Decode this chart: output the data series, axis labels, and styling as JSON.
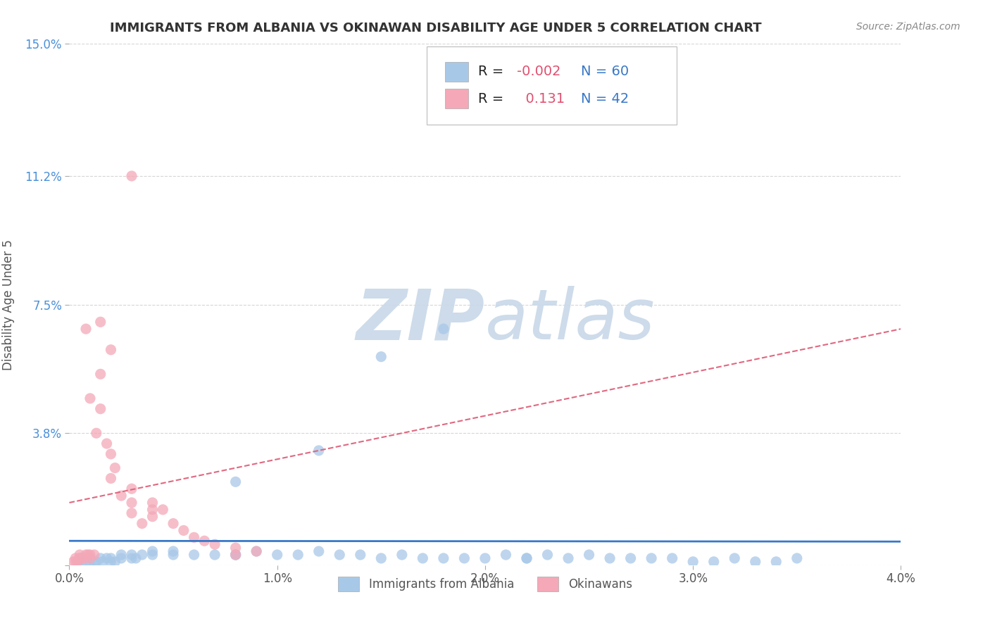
{
  "title": "IMMIGRANTS FROM ALBANIA VS OKINAWAN DISABILITY AGE UNDER 5 CORRELATION CHART",
  "source": "Source: ZipAtlas.com",
  "ylabel": "Disability Age Under 5",
  "legend_label_1": "Immigrants from Albania",
  "legend_label_2": "Okinawans",
  "R1": -0.002,
  "N1": 60,
  "R2": 0.131,
  "N2": 42,
  "color1": "#a8c8e8",
  "color2": "#f4a8b8",
  "trendline1_color": "#3878c8",
  "trendline2_color": "#e06880",
  "xlim": [
    0.0,
    0.04
  ],
  "ylim": [
    0.0,
    0.15
  ],
  "xticks": [
    0.0,
    0.01,
    0.02,
    0.03,
    0.04
  ],
  "xticklabels": [
    "0.0%",
    "1.0%",
    "2.0%",
    "3.0%",
    "4.0%"
  ],
  "yticks": [
    0.0,
    0.038,
    0.075,
    0.112,
    0.15
  ],
  "yticklabels": [
    "",
    "3.8%",
    "7.5%",
    "11.2%",
    "15.0%"
  ],
  "background_color": "#ffffff",
  "grid_color": "#cccccc",
  "watermark_zip": "ZIP",
  "watermark_atlas": "atlas",
  "watermark_color_zip": "#c8d8e8",
  "watermark_color_atlas": "#c8d8e8",
  "scatter1_x": [
    0.0004,
    0.0005,
    0.0006,
    0.0008,
    0.001,
    0.001,
    0.0012,
    0.0013,
    0.0015,
    0.0016,
    0.0018,
    0.002,
    0.002,
    0.0022,
    0.0025,
    0.0025,
    0.003,
    0.003,
    0.0032,
    0.0035,
    0.004,
    0.004,
    0.005,
    0.005,
    0.006,
    0.007,
    0.008,
    0.008,
    0.009,
    0.01,
    0.011,
    0.012,
    0.013,
    0.014,
    0.015,
    0.016,
    0.017,
    0.018,
    0.019,
    0.02,
    0.021,
    0.022,
    0.023,
    0.024,
    0.025,
    0.026,
    0.027,
    0.028,
    0.029,
    0.03,
    0.031,
    0.032,
    0.033,
    0.034,
    0.035,
    0.022,
    0.018,
    0.015,
    0.012,
    0.008
  ],
  "scatter1_y": [
    0.001,
    0.002,
    0.001,
    0.001,
    0.001,
    0.002,
    0.001,
    0.001,
    0.002,
    0.001,
    0.002,
    0.001,
    0.002,
    0.001,
    0.002,
    0.003,
    0.002,
    0.003,
    0.002,
    0.003,
    0.003,
    0.004,
    0.003,
    0.004,
    0.003,
    0.003,
    0.003,
    0.003,
    0.004,
    0.003,
    0.003,
    0.004,
    0.003,
    0.003,
    0.002,
    0.003,
    0.002,
    0.002,
    0.002,
    0.002,
    0.003,
    0.002,
    0.003,
    0.002,
    0.003,
    0.002,
    0.002,
    0.002,
    0.002,
    0.001,
    0.001,
    0.002,
    0.001,
    0.001,
    0.002,
    0.002,
    0.068,
    0.06,
    0.033,
    0.024
  ],
  "scatter2_x": [
    0.0002,
    0.0003,
    0.0003,
    0.0004,
    0.0005,
    0.0005,
    0.0006,
    0.0007,
    0.0008,
    0.0009,
    0.001,
    0.001,
    0.0012,
    0.0013,
    0.0015,
    0.0015,
    0.0018,
    0.002,
    0.002,
    0.0022,
    0.0025,
    0.003,
    0.003,
    0.003,
    0.0035,
    0.004,
    0.004,
    0.0045,
    0.005,
    0.0055,
    0.006,
    0.0065,
    0.007,
    0.008,
    0.008,
    0.009,
    0.001,
    0.002,
    0.003,
    0.0008,
    0.0015,
    0.004
  ],
  "scatter2_y": [
    0.001,
    0.002,
    0.001,
    0.001,
    0.002,
    0.003,
    0.002,
    0.002,
    0.003,
    0.003,
    0.002,
    0.003,
    0.003,
    0.038,
    0.045,
    0.055,
    0.035,
    0.032,
    0.025,
    0.028,
    0.02,
    0.022,
    0.018,
    0.015,
    0.012,
    0.016,
    0.014,
    0.016,
    0.012,
    0.01,
    0.008,
    0.007,
    0.006,
    0.005,
    0.003,
    0.004,
    0.048,
    0.062,
    0.112,
    0.068,
    0.07,
    0.018
  ],
  "trendline1_x": [
    0.0,
    0.04
  ],
  "trendline1_y": [
    0.007,
    0.0068
  ],
  "trendline2_x": [
    0.0,
    0.04
  ],
  "trendline2_y": [
    0.018,
    0.068
  ]
}
